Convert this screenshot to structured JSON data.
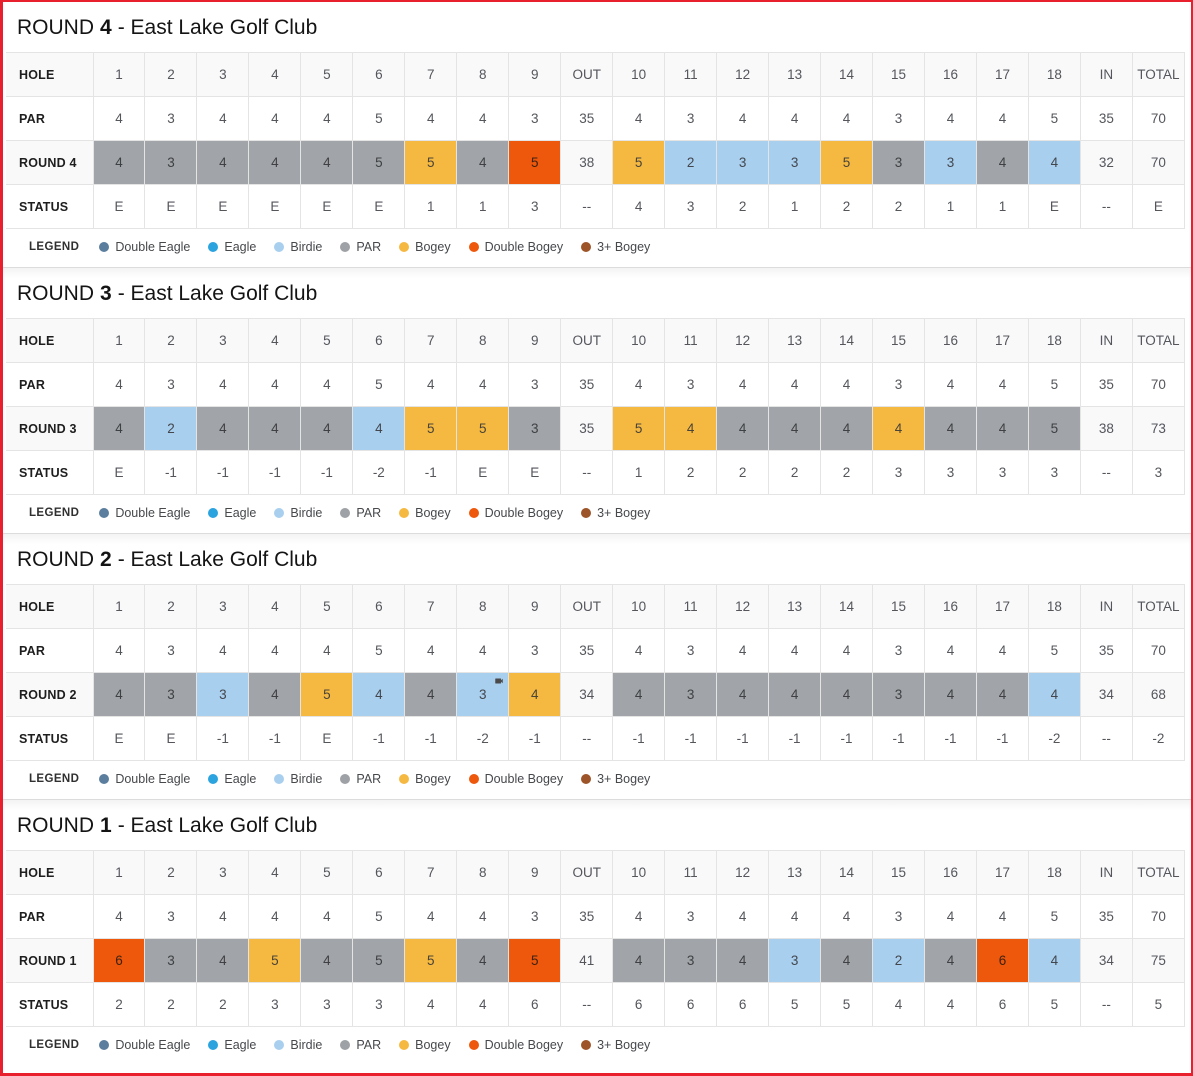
{
  "title": {
    "prefix": "ROUND",
    "suffix": "- East Lake Golf Club"
  },
  "columns": [
    "1",
    "2",
    "3",
    "4",
    "5",
    "6",
    "7",
    "8",
    "9",
    "OUT",
    "10",
    "11",
    "12",
    "13",
    "14",
    "15",
    "16",
    "17",
    "18",
    "IN",
    "TOTAL"
  ],
  "row_labels": {
    "hole": "HOLE",
    "par": "PAR",
    "status": "STATUS"
  },
  "par": [
    "4",
    "3",
    "4",
    "4",
    "4",
    "5",
    "4",
    "4",
    "3",
    "35",
    "4",
    "3",
    "4",
    "4",
    "4",
    "3",
    "4",
    "4",
    "5",
    "35",
    "70"
  ],
  "score_colors": {
    "par": "#a1a4a8",
    "birdie": "#a9cfef",
    "bogey": "#f5b942",
    "double_bogey": "#ed580c"
  },
  "legend": {
    "label": "LEGEND",
    "items": [
      {
        "label": "Double Eagle",
        "color": "#5b7e9e"
      },
      {
        "label": "Eagle",
        "color": "#2ba3de"
      },
      {
        "label": "Birdie",
        "color": "#a9cfef"
      },
      {
        "label": "PAR",
        "color": "#9ea1a5"
      },
      {
        "label": "Bogey",
        "color": "#f5b942"
      },
      {
        "label": "Double Bogey",
        "color": "#ed580c"
      },
      {
        "label": "3+ Bogey",
        "color": "#9c5428"
      }
    ]
  },
  "sections": [
    {
      "number": "4",
      "round_label": "ROUND 4",
      "scores": [
        {
          "v": "4",
          "t": "par"
        },
        {
          "v": "3",
          "t": "par"
        },
        {
          "v": "4",
          "t": "par"
        },
        {
          "v": "4",
          "t": "par"
        },
        {
          "v": "4",
          "t": "par"
        },
        {
          "v": "5",
          "t": "par"
        },
        {
          "v": "5",
          "t": "bogey"
        },
        {
          "v": "4",
          "t": "par"
        },
        {
          "v": "5",
          "t": "double_bogey"
        },
        {
          "v": "38",
          "t": "none"
        },
        {
          "v": "5",
          "t": "bogey"
        },
        {
          "v": "2",
          "t": "birdie"
        },
        {
          "v": "3",
          "t": "birdie"
        },
        {
          "v": "3",
          "t": "birdie"
        },
        {
          "v": "5",
          "t": "bogey"
        },
        {
          "v": "3",
          "t": "par"
        },
        {
          "v": "3",
          "t": "birdie"
        },
        {
          "v": "4",
          "t": "par"
        },
        {
          "v": "4",
          "t": "birdie"
        },
        {
          "v": "32",
          "t": "none"
        },
        {
          "v": "70",
          "t": "none"
        }
      ],
      "status": [
        "E",
        "E",
        "E",
        "E",
        "E",
        "E",
        "1",
        "1",
        "3",
        "--",
        "4",
        "3",
        "2",
        "1",
        "2",
        "2",
        "1",
        "1",
        "E",
        "--",
        "E"
      ]
    },
    {
      "number": "3",
      "round_label": "ROUND 3",
      "scores": [
        {
          "v": "4",
          "t": "par"
        },
        {
          "v": "2",
          "t": "birdie"
        },
        {
          "v": "4",
          "t": "par"
        },
        {
          "v": "4",
          "t": "par"
        },
        {
          "v": "4",
          "t": "par"
        },
        {
          "v": "4",
          "t": "birdie"
        },
        {
          "v": "5",
          "t": "bogey"
        },
        {
          "v": "5",
          "t": "bogey"
        },
        {
          "v": "3",
          "t": "par"
        },
        {
          "v": "35",
          "t": "none"
        },
        {
          "v": "5",
          "t": "bogey"
        },
        {
          "v": "4",
          "t": "bogey"
        },
        {
          "v": "4",
          "t": "par"
        },
        {
          "v": "4",
          "t": "par"
        },
        {
          "v": "4",
          "t": "par"
        },
        {
          "v": "4",
          "t": "bogey"
        },
        {
          "v": "4",
          "t": "par"
        },
        {
          "v": "4",
          "t": "par"
        },
        {
          "v": "5",
          "t": "par"
        },
        {
          "v": "38",
          "t": "none"
        },
        {
          "v": "73",
          "t": "none"
        }
      ],
      "status": [
        "E",
        "-1",
        "-1",
        "-1",
        "-1",
        "-2",
        "-1",
        "E",
        "E",
        "--",
        "1",
        "2",
        "2",
        "2",
        "2",
        "3",
        "3",
        "3",
        "3",
        "--",
        "3"
      ]
    },
    {
      "number": "2",
      "round_label": "ROUND 2",
      "scores": [
        {
          "v": "4",
          "t": "par"
        },
        {
          "v": "3",
          "t": "par"
        },
        {
          "v": "3",
          "t": "birdie"
        },
        {
          "v": "4",
          "t": "par"
        },
        {
          "v": "5",
          "t": "bogey"
        },
        {
          "v": "4",
          "t": "birdie"
        },
        {
          "v": "4",
          "t": "par"
        },
        {
          "v": "3",
          "t": "birdie",
          "icon": "videocam"
        },
        {
          "v": "4",
          "t": "bogey"
        },
        {
          "v": "34",
          "t": "none"
        },
        {
          "v": "4",
          "t": "par"
        },
        {
          "v": "3",
          "t": "par"
        },
        {
          "v": "4",
          "t": "par"
        },
        {
          "v": "4",
          "t": "par"
        },
        {
          "v": "4",
          "t": "par"
        },
        {
          "v": "3",
          "t": "par"
        },
        {
          "v": "4",
          "t": "par"
        },
        {
          "v": "4",
          "t": "par"
        },
        {
          "v": "4",
          "t": "birdie"
        },
        {
          "v": "34",
          "t": "none"
        },
        {
          "v": "68",
          "t": "none"
        }
      ],
      "status": [
        "E",
        "E",
        "-1",
        "-1",
        "E",
        "-1",
        "-1",
        "-2",
        "-1",
        "--",
        "-1",
        "-1",
        "-1",
        "-1",
        "-1",
        "-1",
        "-1",
        "-1",
        "-2",
        "--",
        "-2"
      ]
    },
    {
      "number": "1",
      "round_label": "ROUND 1",
      "scores": [
        {
          "v": "6",
          "t": "double_bogey"
        },
        {
          "v": "3",
          "t": "par"
        },
        {
          "v": "4",
          "t": "par"
        },
        {
          "v": "5",
          "t": "bogey"
        },
        {
          "v": "4",
          "t": "par"
        },
        {
          "v": "5",
          "t": "par"
        },
        {
          "v": "5",
          "t": "bogey"
        },
        {
          "v": "4",
          "t": "par"
        },
        {
          "v": "5",
          "t": "double_bogey"
        },
        {
          "v": "41",
          "t": "none"
        },
        {
          "v": "4",
          "t": "par"
        },
        {
          "v": "3",
          "t": "par"
        },
        {
          "v": "4",
          "t": "par"
        },
        {
          "v": "3",
          "t": "birdie"
        },
        {
          "v": "4",
          "t": "par"
        },
        {
          "v": "2",
          "t": "birdie"
        },
        {
          "v": "4",
          "t": "par"
        },
        {
          "v": "6",
          "t": "double_bogey"
        },
        {
          "v": "4",
          "t": "birdie"
        },
        {
          "v": "34",
          "t": "none"
        },
        {
          "v": "75",
          "t": "none"
        }
      ],
      "status": [
        "2",
        "2",
        "2",
        "3",
        "3",
        "3",
        "4",
        "4",
        "6",
        "--",
        "6",
        "6",
        "6",
        "5",
        "5",
        "4",
        "4",
        "6",
        "5",
        "--",
        "5"
      ]
    }
  ]
}
